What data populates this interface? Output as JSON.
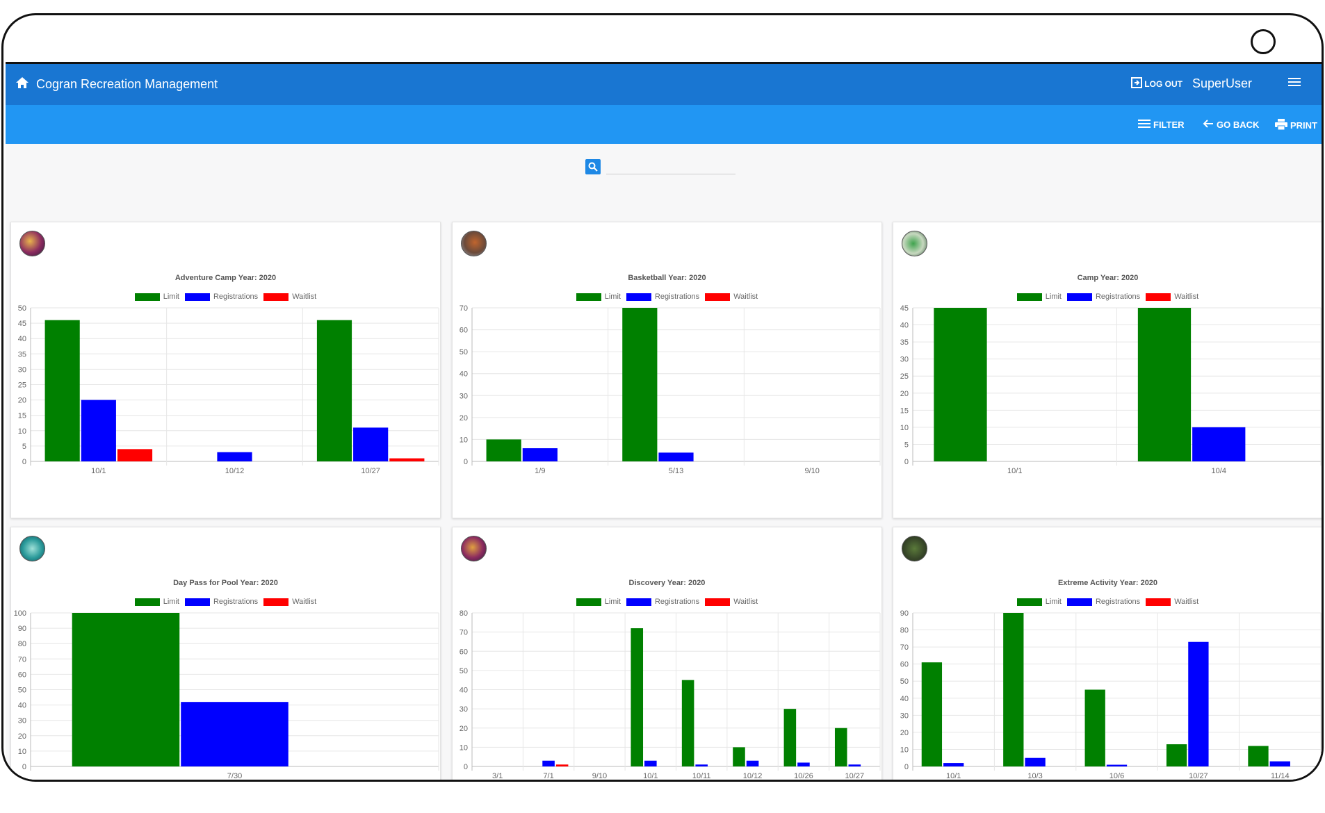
{
  "app": {
    "title": "Cogran Recreation Management",
    "logout_label": "LOG OUT",
    "user": "SuperUser"
  },
  "toolbar": {
    "filter_label": "FILTER",
    "goback_label": "GO BACK",
    "print_label": "PRINT"
  },
  "search": {
    "value": "",
    "placeholder": ""
  },
  "legend": [
    "Limit",
    "Registrations",
    "Waitlist"
  ],
  "colors": {
    "limit": "#008000",
    "registrations": "#0000ff",
    "waitlist": "#ff0000",
    "appbar": "#1976d2",
    "toolbar": "#2196f3"
  },
  "chart_data": [
    {
      "type": "bar",
      "title": "Adventure Camp Year: 2020",
      "categories": [
        "10/1",
        "10/12",
        "10/27"
      ],
      "ylim": [
        0,
        50
      ],
      "ytick_step": 5,
      "series": [
        {
          "name": "Limit",
          "values": [
            46,
            0,
            46
          ]
        },
        {
          "name": "Registrations",
          "values": [
            20,
            3,
            11
          ]
        },
        {
          "name": "Waitlist",
          "values": [
            4,
            0,
            1
          ]
        }
      ]
    },
    {
      "type": "bar",
      "title": "Basketball Year: 2020",
      "categories": [
        "1/9",
        "5/13",
        "9/10"
      ],
      "ylim": [
        0,
        70
      ],
      "ytick_step": 10,
      "series": [
        {
          "name": "Limit",
          "values": [
            10,
            70,
            0
          ]
        },
        {
          "name": "Registrations",
          "values": [
            6,
            4,
            0
          ]
        },
        {
          "name": "Waitlist",
          "values": [
            0,
            0,
            0
          ]
        }
      ]
    },
    {
      "type": "bar",
      "title": "Camp Year: 2020",
      "categories": [
        "10/1",
        "10/4"
      ],
      "ylim": [
        0,
        45
      ],
      "ytick_step": 5,
      "series": [
        {
          "name": "Limit",
          "values": [
            45,
            45
          ]
        },
        {
          "name": "Registrations",
          "values": [
            0,
            10
          ]
        },
        {
          "name": "Waitlist",
          "values": [
            0,
            0
          ]
        }
      ]
    },
    {
      "type": "bar",
      "title": "Day Pass for Pool Year: 2020",
      "categories": [
        "7/30"
      ],
      "ylim": [
        0,
        100
      ],
      "ytick_step": 10,
      "series": [
        {
          "name": "Limit",
          "values": [
            100
          ]
        },
        {
          "name": "Registrations",
          "values": [
            42
          ]
        },
        {
          "name": "Waitlist",
          "values": [
            0
          ]
        }
      ]
    },
    {
      "type": "bar",
      "title": "Discovery Year: 2020",
      "categories": [
        "3/1",
        "7/1",
        "9/10",
        "10/1",
        "10/11",
        "10/12",
        "10/26",
        "10/27"
      ],
      "ylim": [
        0,
        80
      ],
      "ytick_step": 10,
      "series": [
        {
          "name": "Limit",
          "values": [
            0,
            0,
            0,
            72,
            45,
            10,
            30,
            20
          ]
        },
        {
          "name": "Registrations",
          "values": [
            0,
            3,
            0,
            3,
            1,
            3,
            2,
            1
          ]
        },
        {
          "name": "Waitlist",
          "values": [
            0,
            1,
            0,
            0,
            0,
            0,
            0,
            0
          ]
        }
      ]
    },
    {
      "type": "bar",
      "title": "Extreme Activity  Year: 2020",
      "categories": [
        "10/1",
        "10/3",
        "10/6",
        "10/27",
        "11/14"
      ],
      "ylim": [
        0,
        90
      ],
      "ytick_step": 10,
      "series": [
        {
          "name": "Limit",
          "values": [
            61,
            90,
            45,
            13,
            12
          ]
        },
        {
          "name": "Registrations",
          "values": [
            2,
            5,
            1,
            73,
            3
          ]
        },
        {
          "name": "Waitlist",
          "values": [
            0,
            0,
            0,
            0,
            0
          ]
        }
      ]
    }
  ]
}
